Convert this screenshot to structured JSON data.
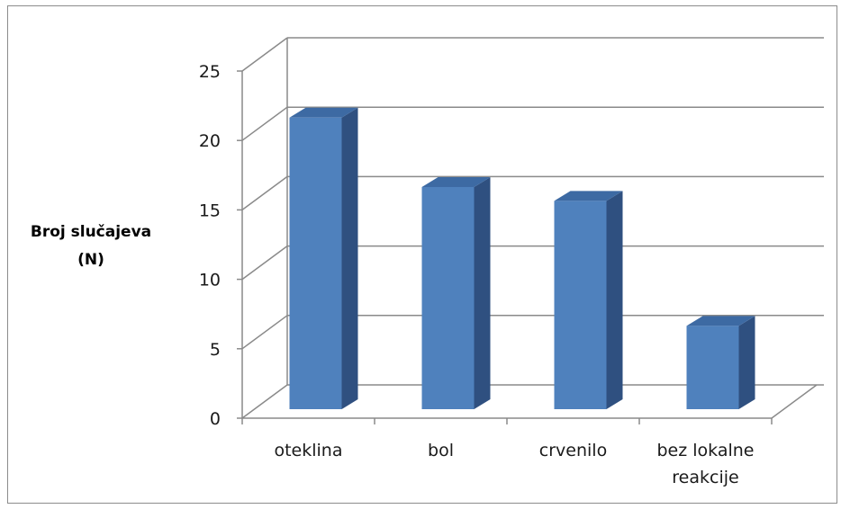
{
  "chart_data": {
    "type": "bar",
    "title": "",
    "xlabel": "",
    "ylabel": [
      "Broj slučajeva",
      "(N)"
    ],
    "categories": [
      [
        "oteklina"
      ],
      [
        "bol"
      ],
      [
        "crvenilo"
      ],
      [
        "bez lokalne",
        "reakcije"
      ]
    ],
    "values": [
      21,
      16,
      15,
      6
    ],
    "ylim": [
      0,
      25
    ],
    "yticks": [
      0,
      5,
      10,
      15,
      20,
      25
    ],
    "grid": true,
    "style": "3d-column",
    "colors": {
      "bar_front": "#4f81bd",
      "bar_side": "#2f5080",
      "bar_top": "#3d6aa3",
      "grid": "#8a8a8a"
    }
  }
}
